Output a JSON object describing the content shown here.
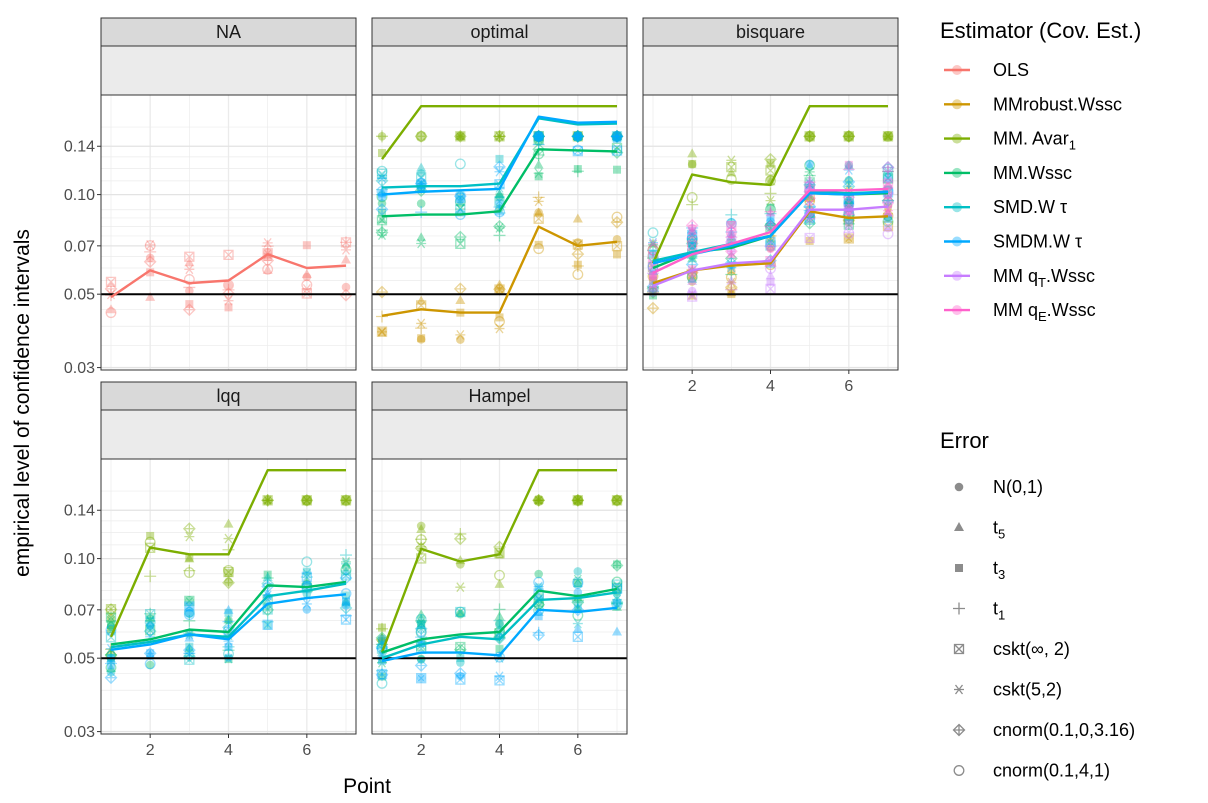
{
  "chart_data": {
    "type": "line",
    "xlabel": "Point",
    "ylabel": "empirical level of confidence intervals",
    "x": [
      1,
      2,
      3,
      4,
      5,
      6,
      7
    ],
    "x_ticks": [
      2,
      4,
      6
    ],
    "y_ticks": [
      0.03,
      0.05,
      0.07,
      0.1,
      0.14
    ],
    "y_tick_labels": [
      "0.03",
      "0.05",
      "0.07",
      "0.10",
      "0.14"
    ],
    "y_scale": "log",
    "ylim": [
      0.0295,
      0.2
    ],
    "reference_line": 0.05,
    "grid": true,
    "legend_position": "right",
    "panels": [
      {
        "name": "NA",
        "series": [
          {
            "name": "OLS",
            "values": [
              0.049,
              0.059,
              0.054,
              0.055,
              0.066,
              0.06,
              0.061
            ]
          }
        ]
      },
      {
        "name": "optimal",
        "series": [
          {
            "name": "MMrobust.Wssc",
            "values": [
              0.043,
              0.045,
              0.044,
              0.044,
              0.08,
              0.07,
              0.072
            ]
          },
          {
            "name": "MM. Avar1",
            "values": [
              0.128,
              0.185,
              0.185,
              0.185,
              0.185,
              0.185,
              0.185
            ]
          },
          {
            "name": "MM.Wssc",
            "values": [
              0.086,
              0.087,
              0.087,
              0.089,
              0.137,
              0.136,
              0.135
            ]
          },
          {
            "name": "SMD.W τ",
            "values": [
              0.105,
              0.106,
              0.106,
              0.108,
              0.17,
              0.163,
              0.164
            ]
          },
          {
            "name": "SMDM.W τ",
            "values": [
              0.1,
              0.102,
              0.103,
              0.104,
              0.172,
              0.165,
              0.166
            ]
          }
        ]
      },
      {
        "name": "bisquare",
        "series": [
          {
            "name": "MMrobust.Wssc",
            "values": [
              0.054,
              0.059,
              0.061,
              0.062,
              0.089,
              0.085,
              0.086
            ]
          },
          {
            "name": "MM. Avar1",
            "values": [
              0.062,
              0.115,
              0.109,
              0.107,
              0.185,
              0.185,
              0.185
            ]
          },
          {
            "name": "MM.Wssc",
            "values": [
              0.06,
              0.067,
              0.069,
              0.075,
              0.101,
              0.1,
              0.101
            ]
          },
          {
            "name": "SMD.W τ",
            "values": [
              0.063,
              0.067,
              0.071,
              0.075,
              0.102,
              0.101,
              0.102
            ]
          },
          {
            "name": "SMDM.W τ",
            "values": [
              0.062,
              0.066,
              0.07,
              0.075,
              0.101,
              0.1,
              0.102
            ]
          },
          {
            "name": "MM qT.Wssc",
            "values": [
              0.053,
              0.059,
              0.062,
              0.063,
              0.09,
              0.09,
              0.092
            ]
          },
          {
            "name": "MM qE.Wssc",
            "values": [
              0.058,
              0.066,
              0.071,
              0.077,
              0.103,
              0.103,
              0.104
            ]
          }
        ]
      },
      {
        "name": "lqq",
        "series": [
          {
            "name": "MM. Avar1",
            "values": [
              0.058,
              0.108,
              0.103,
              0.103,
              0.185,
              0.185,
              0.185
            ]
          },
          {
            "name": "MM.Wssc",
            "values": [
              0.055,
              0.057,
              0.061,
              0.06,
              0.083,
              0.082,
              0.085
            ]
          },
          {
            "name": "SMD.W τ",
            "values": [
              0.054,
              0.056,
              0.059,
              0.058,
              0.077,
              0.08,
              0.084
            ]
          },
          {
            "name": "SMDM.W τ",
            "values": [
              0.053,
              0.055,
              0.059,
              0.057,
              0.073,
              0.076,
              0.078
            ]
          }
        ]
      },
      {
        "name": "Hampel",
        "series": [
          {
            "name": "MM. Avar1",
            "values": [
              0.052,
              0.107,
              0.098,
              0.103,
              0.185,
              0.185,
              0.185
            ]
          },
          {
            "name": "MM.Wssc",
            "values": [
              0.052,
              0.057,
              0.059,
              0.06,
              0.08,
              0.077,
              0.081
            ]
          },
          {
            "name": "SMD.W τ",
            "values": [
              0.05,
              0.055,
              0.058,
              0.057,
              0.075,
              0.076,
              0.079
            ]
          },
          {
            "name": "SMDM.W τ",
            "values": [
              0.049,
              0.052,
              0.052,
              0.051,
              0.07,
              0.069,
              0.071
            ]
          }
        ]
      }
    ]
  },
  "legend_estimator": {
    "title": "Estimator (Cov. Est.)",
    "items": [
      {
        "label": "OLS",
        "color": "#F8766D"
      },
      {
        "label": "MMrobust.Wssc",
        "color": "#CD9600"
      },
      {
        "label": "MM. Avar",
        "sub": "1",
        "color": "#7CAE00"
      },
      {
        "label": "MM.Wssc",
        "color": "#00BE67"
      },
      {
        "label": "SMD.W τ",
        "color": "#00BFC4"
      },
      {
        "label": "SMDM.W τ",
        "color": "#00A9FF"
      },
      {
        "label": "MM  q",
        "sub": "T",
        "suffix": ".Wssc",
        "color": "#C77CFF"
      },
      {
        "label": "MM  q",
        "sub": "E",
        "suffix": ".Wssc",
        "color": "#FF61CC"
      }
    ]
  },
  "legend_error": {
    "title": "Error",
    "items": [
      {
        "label": "N(0,1)",
        "shape": "circle"
      },
      {
        "label": "t",
        "sub": "5",
        "shape": "triangle"
      },
      {
        "label": "t",
        "sub": "3",
        "shape": "square"
      },
      {
        "label": "t",
        "sub": "1",
        "shape": "plus"
      },
      {
        "label": "cskt(∞, 2)",
        "shape": "boxx"
      },
      {
        "label": "cskt(5,2)",
        "shape": "asterisk"
      },
      {
        "label": "cnorm(0.1,0,3.16)",
        "shape": "diamondplus"
      },
      {
        "label": "cnorm(0.1,4,1)",
        "shape": "opencircle"
      }
    ]
  }
}
